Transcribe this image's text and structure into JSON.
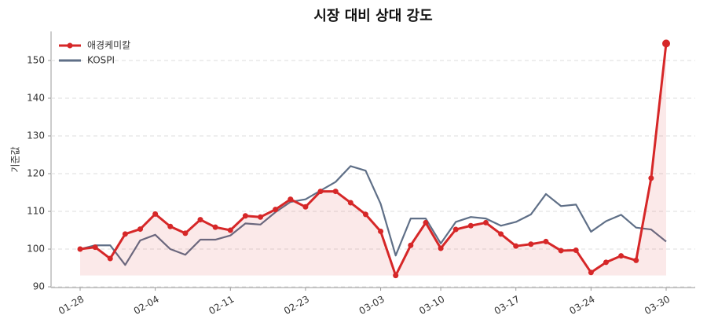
{
  "chart_data": {
    "type": "line",
    "title": "시장 대비 상대 강도",
    "ylabel": "기준값",
    "categories": [
      "01-28",
      null,
      null,
      null,
      null,
      "02-04",
      null,
      null,
      null,
      null,
      "02-11",
      null,
      null,
      null,
      null,
      "02-23",
      null,
      null,
      null,
      null,
      "03-03",
      null,
      null,
      null,
      "03-10",
      null,
      null,
      null,
      null,
      "03-17",
      null,
      null,
      null,
      null,
      "03-24",
      null,
      null,
      null,
      null,
      "03-30"
    ],
    "series": [
      {
        "name": "애경케미칼",
        "color": "#d62728",
        "markers": true,
        "fill": true,
        "values": [
          100,
          100.5,
          97.5,
          104,
          105.3,
          109.3,
          106,
          104.2,
          107.8,
          105.8,
          105,
          108.8,
          108.5,
          110.5,
          113.2,
          111.2,
          115.3,
          115.3,
          112.3,
          109.2,
          104.7,
          93,
          101,
          107,
          100.2,
          105.2,
          106.2,
          107,
          104,
          100.8,
          101.3,
          102,
          99.6,
          99.7,
          93.8,
          96.5,
          98.2,
          97,
          118.8,
          154.5
        ]
      },
      {
        "name": "KOSPI",
        "color": "#5f6f87",
        "markers": false,
        "fill": false,
        "values": [
          100,
          101,
          101,
          95.8,
          102.3,
          103.8,
          100,
          98.5,
          102.5,
          102.5,
          103.6,
          106.8,
          106.5,
          109.8,
          112.5,
          113.2,
          115.5,
          117.8,
          122,
          120.8,
          112,
          98.3,
          108.1,
          108.1,
          101.5,
          107.2,
          108.5,
          108.1,
          106.2,
          107.2,
          109.2,
          114.6,
          111.4,
          111.8,
          104.6,
          107.4,
          109.1,
          105.7,
          105.2,
          102
        ]
      }
    ],
    "ylim": [
      89.8,
      157.7
    ],
    "yticks": [
      90,
      100,
      110,
      120,
      130,
      140,
      150
    ],
    "grid": true,
    "legend": "upper left"
  }
}
